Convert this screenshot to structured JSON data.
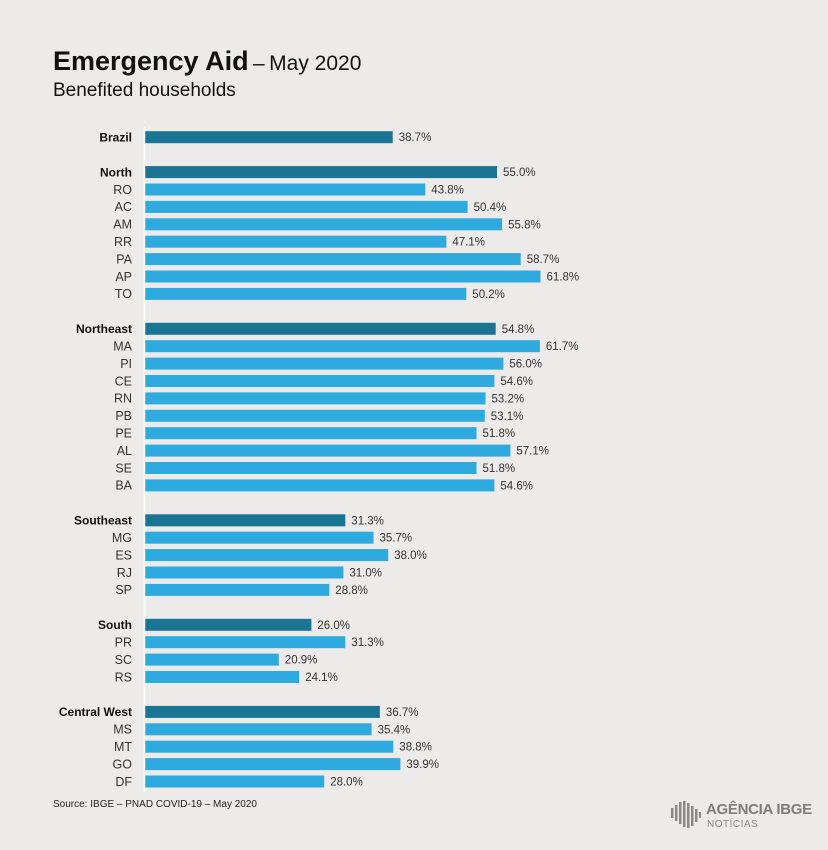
{
  "header": {
    "title": "Emergency Aid",
    "separator": "–",
    "date": "May 2020",
    "subtitle": "Benefited households"
  },
  "source": "Source: IBGE – PNAD COVID-19 – May 2020",
  "logo": {
    "line1": "AGÊNCIA IBGE",
    "line2": "NOTÍCIAS",
    "icon": "ibge-map-icon"
  },
  "colors": {
    "region_bar": "#1a7594",
    "state_bar": "#2eaadf",
    "axis": "#ffffff",
    "background": "#ecebe9"
  },
  "chart_data": {
    "type": "bar",
    "orientation": "horizontal",
    "value_suffix": "%",
    "xlim": [
      0,
      70
    ],
    "groups": [
      {
        "name": "Brazil",
        "value": 38.7,
        "items": []
      },
      {
        "name": "North",
        "value": 55.0,
        "items": [
          {
            "name": "RO",
            "value": 43.8
          },
          {
            "name": "AC",
            "value": 50.4
          },
          {
            "name": "AM",
            "value": 55.8
          },
          {
            "name": "RR",
            "value": 47.1
          },
          {
            "name": "PA",
            "value": 58.7
          },
          {
            "name": "AP",
            "value": 61.8
          },
          {
            "name": "TO",
            "value": 50.2
          }
        ]
      },
      {
        "name": "Northeast",
        "value": 54.8,
        "items": [
          {
            "name": "MA",
            "value": 61.7
          },
          {
            "name": "PI",
            "value": 56.0
          },
          {
            "name": "CE",
            "value": 54.6
          },
          {
            "name": "RN",
            "value": 53.2
          },
          {
            "name": "PB",
            "value": 53.1
          },
          {
            "name": "PE",
            "value": 51.8
          },
          {
            "name": "AL",
            "value": 57.1
          },
          {
            "name": "SE",
            "value": 51.8
          },
          {
            "name": "BA",
            "value": 54.6
          }
        ]
      },
      {
        "name": "Southeast",
        "value": 31.3,
        "items": [
          {
            "name": "MG",
            "value": 35.7
          },
          {
            "name": "ES",
            "value": 38.0
          },
          {
            "name": "RJ",
            "value": 31.0
          },
          {
            "name": "SP",
            "value": 28.8
          }
        ]
      },
      {
        "name": "South",
        "value": 26.0,
        "items": [
          {
            "name": "PR",
            "value": 31.3
          },
          {
            "name": "SC",
            "value": 20.9
          },
          {
            "name": "RS",
            "value": 24.1
          }
        ]
      },
      {
        "name": "Central West",
        "value": 36.7,
        "items": [
          {
            "name": "MS",
            "value": 35.4
          },
          {
            "name": "MT",
            "value": 38.8
          },
          {
            "name": "GO",
            "value": 39.9
          },
          {
            "name": "DF",
            "value": 28.0
          }
        ]
      }
    ]
  }
}
